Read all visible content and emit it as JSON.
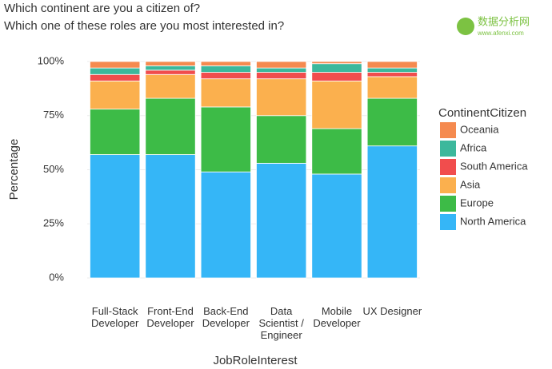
{
  "chart_data": {
    "type": "stacked_bar",
    "title": "Which continent are you a citizen of?",
    "subtitle": "Which one of these roles are you most interested in?",
    "watermark": {
      "text": "数据分析网",
      "url": "www.afenxi.com"
    },
    "x_label": "JobRoleInterest",
    "y_label": "Percentage",
    "legend_title": "ContinentCitizen",
    "categories": [
      "Full-Stack\nDeveloper",
      "Front-End\nDeveloper",
      "Back-End\nDeveloper",
      "Data\nScientist /\nEngineer",
      "Mobile\nDeveloper",
      "UX Designer"
    ],
    "series": [
      {
        "name": "North America",
        "color": "#35b6f7",
        "values": [
          57,
          57,
          49,
          53,
          48,
          61
        ]
      },
      {
        "name": "Europe",
        "color": "#3dbb47",
        "values": [
          21,
          26,
          30,
          22,
          21,
          22
        ]
      },
      {
        "name": "Asia",
        "color": "#fbb04e",
        "values": [
          13,
          11,
          13,
          17,
          22,
          10
        ]
      },
      {
        "name": "South America",
        "color": "#f14d4d",
        "values": [
          3,
          2,
          3,
          3,
          4,
          2
        ]
      },
      {
        "name": "Africa",
        "color": "#3cb89c",
        "values": [
          3,
          2,
          3,
          2,
          4,
          2
        ]
      },
      {
        "name": "Oceania",
        "color": "#f58a4f",
        "values": [
          3,
          2,
          2,
          3,
          1,
          3
        ]
      }
    ],
    "ylim": [
      0,
      100
    ],
    "yticks": [
      {
        "value": 0,
        "label": "0%"
      },
      {
        "value": 25,
        "label": "25%"
      },
      {
        "value": 50,
        "label": "50%"
      },
      {
        "value": 75,
        "label": "75%"
      },
      {
        "value": 100,
        "label": "100%"
      }
    ],
    "grid": true,
    "legend": "right"
  }
}
